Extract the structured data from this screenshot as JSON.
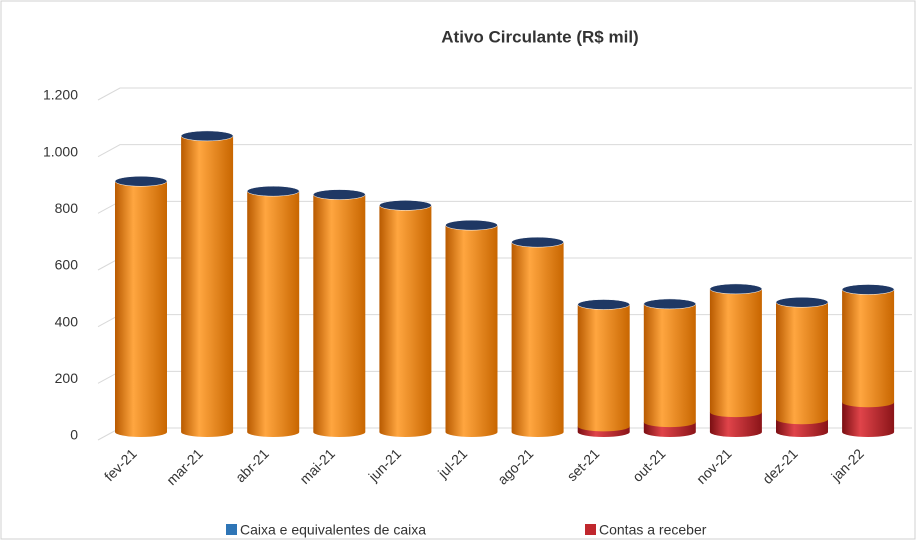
{
  "chart_data": {
    "type": "bar3d_stacked",
    "title": "Ativo Circulante   (R$ mil)",
    "categories": [
      "fev-21",
      "mar-21",
      "abr-21",
      "mai-21",
      "jun-21",
      "jul-21",
      "ago-21",
      "set-21",
      "out-21",
      "nov-21",
      "dez-21",
      "jan-22"
    ],
    "series": [
      {
        "name": "Contas a receber",
        "color": "#c0272d",
        "values": [
          0,
          0,
          0,
          0,
          0,
          0,
          0,
          20,
          35,
          70,
          45,
          105
        ]
      },
      {
        "name": "Caixa e equivalentes de caixa",
        "color": "#2e75b6",
        "body_color": "#f7941d",
        "values": [
          885,
          1045,
          850,
          838,
          800,
          730,
          670,
          430,
          417,
          435,
          413,
          398
        ]
      }
    ],
    "ylim": [
      0,
      1200
    ],
    "yticks": [
      0,
      {
        "value": 200,
        "label": "200"
      },
      400,
      600,
      800,
      {
        "value": 1000,
        "label": "1.000"
      },
      {
        "value": 1200,
        "label": "1.200"
      }
    ],
    "cap_color": "#1f3864",
    "grid": true,
    "legend": "bottom"
  }
}
